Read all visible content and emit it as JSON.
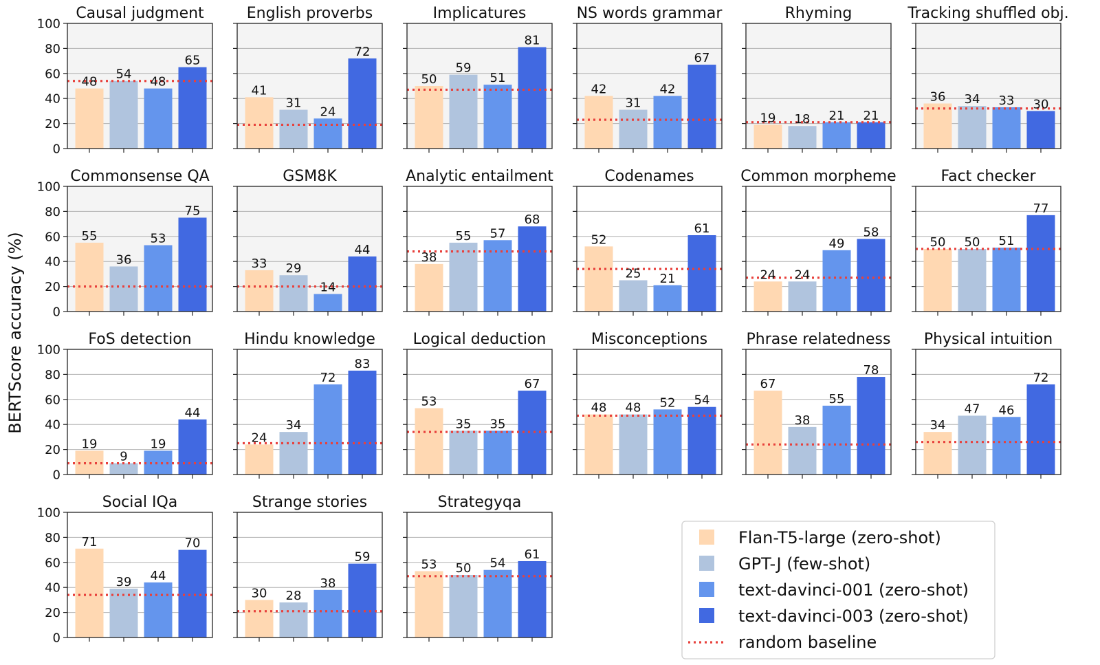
{
  "colors": {
    "flan": "#ffd8b2",
    "gptj": "#b0c4de",
    "td001": "#6495ed",
    "td003": "#4169e1",
    "baseline": "#e8413c",
    "panel_bg_highlight": "#f4f4f4"
  },
  "chart_data": {
    "type": "bar",
    "ylabel": "BERTScore accuracy (%)",
    "ylim": [
      0,
      100
    ],
    "yticks": [
      "0",
      "20",
      "40",
      "60",
      "80",
      "100"
    ],
    "grid": "horizontal",
    "legend_position": "bottom-right",
    "series": [
      {
        "name": "Flan-T5-large (zero-shot)",
        "color_key": "flan"
      },
      {
        "name": "GPT-J (few-shot)",
        "color_key": "gptj"
      },
      {
        "name": "text-davinci-001 (zero-shot)",
        "color_key": "td001"
      },
      {
        "name": "text-davinci-003 (zero-shot)",
        "color_key": "td003"
      }
    ],
    "baseline_name": "random baseline",
    "panels": [
      {
        "title": "Causal judgment",
        "values": [
          48,
          54,
          48,
          65
        ],
        "baseline": 54,
        "shaded": true
      },
      {
        "title": "English proverbs",
        "values": [
          41,
          31,
          24,
          72
        ],
        "baseline": 19,
        "shaded": true
      },
      {
        "title": "Implicatures",
        "values": [
          50,
          59,
          51,
          81
        ],
        "baseline": 47,
        "shaded": true
      },
      {
        "title": "NS words grammar",
        "values": [
          42,
          31,
          42,
          67
        ],
        "baseline": 23,
        "shaded": true
      },
      {
        "title": "Rhyming",
        "values": [
          19,
          18,
          21,
          21
        ],
        "baseline": 21,
        "shaded": true
      },
      {
        "title": "Tracking shuffled obj.",
        "values": [
          36,
          34,
          33,
          30
        ],
        "baseline": 32,
        "shaded": true
      },
      {
        "title": "Commonsense QA",
        "values": [
          55,
          36,
          53,
          75
        ],
        "baseline": 20,
        "shaded": true
      },
      {
        "title": "GSM8K",
        "values": [
          33,
          29,
          14,
          44
        ],
        "baseline": 20,
        "shaded": true
      },
      {
        "title": "Analytic entailment",
        "values": [
          38,
          55,
          57,
          68
        ],
        "baseline": 48,
        "shaded": false
      },
      {
        "title": "Codenames",
        "values": [
          52,
          25,
          21,
          61
        ],
        "baseline": 34,
        "shaded": false
      },
      {
        "title": "Common morpheme",
        "values": [
          24,
          24,
          49,
          58
        ],
        "baseline": 27,
        "shaded": false
      },
      {
        "title": "Fact checker",
        "values": [
          50,
          50,
          51,
          77
        ],
        "baseline": 50,
        "shaded": false
      },
      {
        "title": "FoS detection",
        "values": [
          19,
          9,
          19,
          44
        ],
        "baseline": 9,
        "shaded": false
      },
      {
        "title": "Hindu knowledge",
        "values": [
          24,
          34,
          72,
          83
        ],
        "baseline": 25,
        "shaded": false
      },
      {
        "title": "Logical deduction",
        "values": [
          53,
          35,
          35,
          67
        ],
        "baseline": 34,
        "shaded": false
      },
      {
        "title": "Misconceptions",
        "values": [
          48,
          48,
          52,
          54
        ],
        "baseline": 47,
        "shaded": false
      },
      {
        "title": "Phrase relatedness",
        "values": [
          67,
          38,
          55,
          78
        ],
        "baseline": 24,
        "shaded": false
      },
      {
        "title": "Physical intuition",
        "values": [
          34,
          47,
          46,
          72
        ],
        "baseline": 26,
        "shaded": false
      },
      {
        "title": "Social IQa",
        "values": [
          71,
          39,
          44,
          70
        ],
        "baseline": 34,
        "shaded": false
      },
      {
        "title": "Strange stories",
        "values": [
          30,
          28,
          38,
          59
        ],
        "baseline": 21,
        "shaded": false
      },
      {
        "title": "Strategyqa",
        "values": [
          53,
          50,
          54,
          61
        ],
        "baseline": 49,
        "shaded": false
      }
    ]
  }
}
